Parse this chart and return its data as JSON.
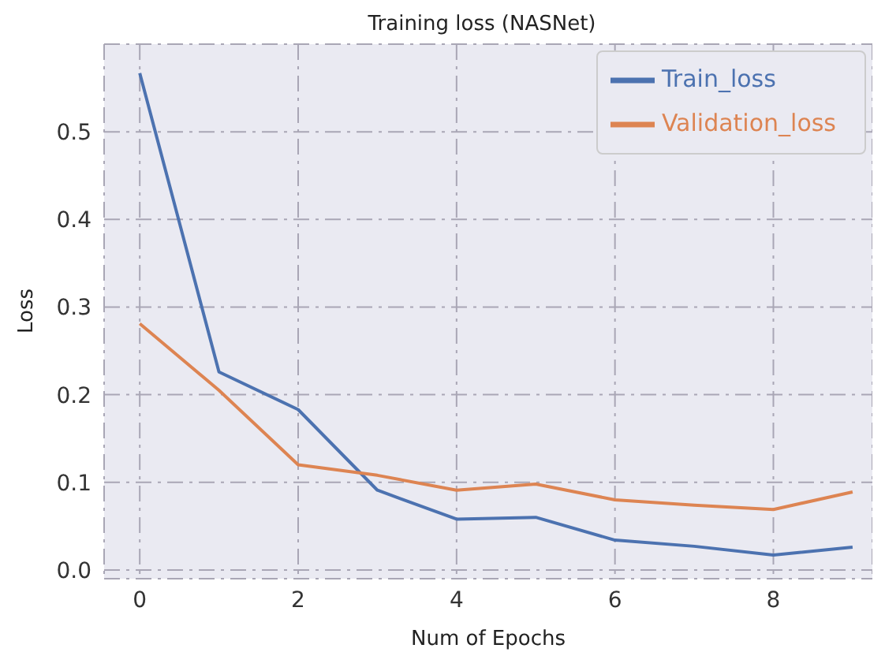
{
  "chart_data": {
    "type": "line",
    "title": "Training loss (NASNet)",
    "xlabel": "Num of Epochs",
    "ylabel": "Loss",
    "x": [
      0,
      1,
      2,
      3,
      4,
      5,
      6,
      7,
      8,
      9
    ],
    "series": [
      {
        "name": "Train_loss",
        "color": "#4c72b0",
        "values": [
          0.567,
          0.226,
          0.183,
          0.091,
          0.058,
          0.06,
          0.034,
          0.027,
          0.017,
          0.026
        ]
      },
      {
        "name": "Validation_loss",
        "color": "#dd8452",
        "values": [
          0.281,
          0.205,
          0.12,
          0.108,
          0.091,
          0.098,
          0.08,
          0.074,
          0.069,
          0.089
        ]
      }
    ],
    "xlim": [
      -0.45,
      9.25
    ],
    "ylim": [
      -0.01,
      0.6
    ],
    "xticks": [
      0,
      2,
      4,
      6,
      8
    ],
    "yticks": [
      {
        "value": 0,
        "label": "0.0"
      },
      0.1,
      0.2,
      0.3,
      0.4,
      0.5
    ],
    "grid": true,
    "legend": "top right",
    "marker": "none",
    "line_style": "solid"
  }
}
